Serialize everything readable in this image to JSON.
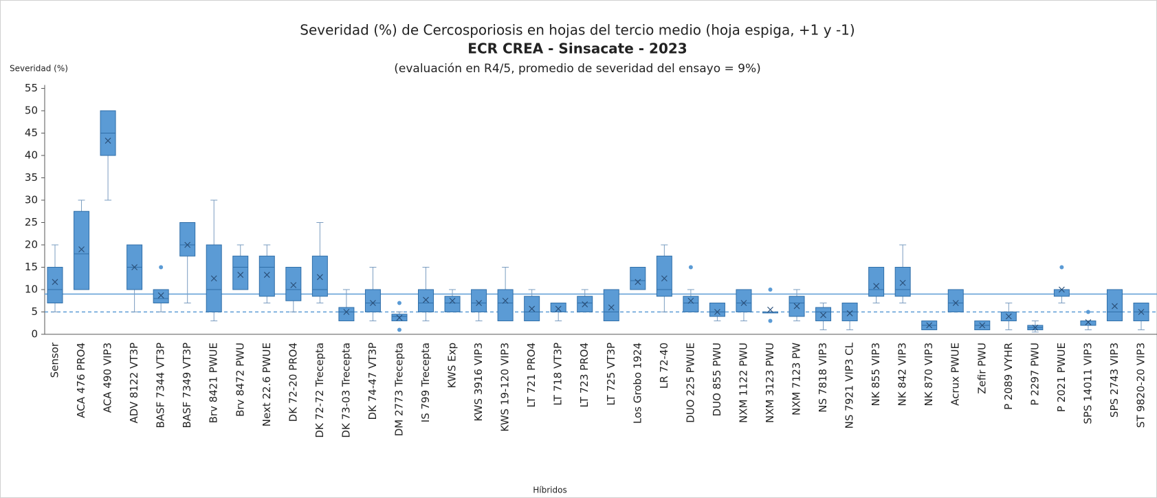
{
  "chart_data": {
    "type": "box",
    "title": "Severidad (%) de Cercosporiosis en hojas del tercio medio (hoja espiga, +1 y -1)",
    "subtitle": "ECR CREA - Sinsacate - 2023",
    "note": "(evaluación en R4/5, promedio de severidad del ensayo = 9%)",
    "y_label": "Severidad (%)",
    "x_label": "Híbridos",
    "color": "#5b9bd5",
    "ylim": [
      0,
      55
    ],
    "yticks": [
      0,
      5,
      10,
      15,
      20,
      25,
      30,
      35,
      40,
      45,
      50,
      55
    ],
    "reference_lines": [
      {
        "value": 9,
        "style": "solid"
      },
      {
        "value": 5,
        "style": "dashed"
      }
    ],
    "categories": [
      "Sensor",
      "ACA 476 PRO4",
      "ACA 490 VIP3",
      "ADV 8122 VT3P",
      "BASF 7344 VT3P",
      "BASF 7349 VT3P",
      "Brv 8421 PWUE",
      "Brv 8472 PWU",
      "Next 22.6 PWUE",
      "DK 72-20 PRO4",
      "DK 72-72 Trecepta",
      "DK 73-03 Trecepta",
      "DK 74-47 VT3P",
      "DM 2773 Trecepta",
      "IS 799 Trecepta",
      "KWS Exp",
      "KWS 3916 VIP3",
      "KWS 19-120 VIP3",
      "LT 721 PRO4",
      "LT 718 VT3P",
      "LT 723 PRO4",
      "LT 725 VT3P",
      "Los Grobo 1924",
      "LR 72-40",
      "DUO 225 PWUE",
      "DUO 855 PWU",
      "NXM 1122 PWU",
      "NXM 3123 PWU",
      "NXM 7123 PW",
      "NS 7818 VIP3",
      "NS 7921 VIP3 CL",
      "NK 855 VIP3",
      "NK 842 VIP3",
      "NK 870 VIP3",
      "Acrux PWUE",
      "Zefir PWU",
      "P 2089 VYHR",
      "P 2297 PWU",
      "P 2021 PWUE",
      "SPS 14011 VIP3",
      "SPS 2743 VIP3",
      "ST 9820-20 VIP3"
    ],
    "boxes": [
      {
        "min": 5,
        "q1": 7,
        "median": 10,
        "q3": 15,
        "max": 20,
        "mean": 11.7,
        "outliers": []
      },
      {
        "min": 10,
        "q1": 10,
        "median": 18,
        "q3": 27.5,
        "max": 30,
        "mean": 19,
        "outliers": []
      },
      {
        "min": 30,
        "q1": 40,
        "median": 45,
        "q3": 50,
        "max": 50,
        "mean": 43.3,
        "outliers": []
      },
      {
        "min": 5,
        "q1": 10,
        "median": 15,
        "q3": 20,
        "max": 20,
        "mean": 15,
        "outliers": []
      },
      {
        "min": 5,
        "q1": 7,
        "median": 8,
        "q3": 10,
        "max": 10,
        "mean": 8.7,
        "outliers": [
          15
        ]
      },
      {
        "min": 7,
        "q1": 17.5,
        "median": 20,
        "q3": 25,
        "max": 25,
        "mean": 20,
        "outliers": []
      },
      {
        "min": 3,
        "q1": 5,
        "median": 10,
        "q3": 20,
        "max": 30,
        "mean": 12.5,
        "outliers": []
      },
      {
        "min": 10,
        "q1": 10,
        "median": 15,
        "q3": 17.5,
        "max": 20,
        "mean": 13.3,
        "outliers": []
      },
      {
        "min": 7,
        "q1": 8.5,
        "median": 15,
        "q3": 17.5,
        "max": 20,
        "mean": 13.3,
        "outliers": []
      },
      {
        "min": 5,
        "q1": 7.5,
        "median": 10,
        "q3": 15,
        "max": 15,
        "mean": 11,
        "outliers": []
      },
      {
        "min": 7,
        "q1": 8.5,
        "median": 10,
        "q3": 17.5,
        "max": 25,
        "mean": 12.8,
        "outliers": []
      },
      {
        "min": 3,
        "q1": 3,
        "median": 5,
        "q3": 6,
        "max": 10,
        "mean": 5,
        "outliers": []
      },
      {
        "min": 3,
        "q1": 5,
        "median": 7,
        "q3": 10,
        "max": 15,
        "mean": 7,
        "outliers": []
      },
      {
        "min": 3,
        "q1": 3,
        "median": 4,
        "q3": 4.5,
        "max": 5,
        "mean": 3.7,
        "outliers": [
          1,
          7
        ]
      },
      {
        "min": 3,
        "q1": 5,
        "median": 7,
        "q3": 10,
        "max": 15,
        "mean": 7.7,
        "outliers": []
      },
      {
        "min": 5,
        "q1": 5,
        "median": 7,
        "q3": 8.5,
        "max": 10,
        "mean": 7.5,
        "outliers": []
      },
      {
        "min": 3,
        "q1": 5,
        "median": 7,
        "q3": 10,
        "max": 10,
        "mean": 7,
        "outliers": []
      },
      {
        "min": 3,
        "q1": 3,
        "median": 7,
        "q3": 10,
        "max": 15,
        "mean": 7.5,
        "outliers": []
      },
      {
        "min": 3,
        "q1": 3,
        "median": 5,
        "q3": 8.5,
        "max": 10,
        "mean": 5.7,
        "outliers": []
      },
      {
        "min": 3,
        "q1": 5,
        "median": 7,
        "q3": 7,
        "max": 7,
        "mean": 5.7,
        "outliers": []
      },
      {
        "min": 5,
        "q1": 5,
        "median": 7,
        "q3": 8.5,
        "max": 10,
        "mean": 6.7,
        "outliers": []
      },
      {
        "min": 3,
        "q1": 3,
        "median": 5,
        "q3": 10,
        "max": 10,
        "mean": 6,
        "outliers": []
      },
      {
        "min": 10,
        "q1": 10,
        "median": 12,
        "q3": 15,
        "max": 15,
        "mean": 11.7,
        "outliers": []
      },
      {
        "min": 5,
        "q1": 8.5,
        "median": 10,
        "q3": 17.5,
        "max": 20,
        "mean": 12.5,
        "outliers": []
      },
      {
        "min": 5,
        "q1": 5,
        "median": 7,
        "q3": 8.5,
        "max": 10,
        "mean": 7.5,
        "outliers": [
          15
        ]
      },
      {
        "min": 3,
        "q1": 4,
        "median": 5,
        "q3": 7,
        "max": 7,
        "mean": 5,
        "outliers": []
      },
      {
        "min": 3,
        "q1": 5,
        "median": 7,
        "q3": 10,
        "max": 10,
        "mean": 7,
        "outliers": []
      },
      {
        "min": 5,
        "q1": 5,
        "median": 5,
        "q3": 5,
        "max": 5,
        "mean": 5.5,
        "outliers": [
          3,
          10
        ]
      },
      {
        "min": 3,
        "q1": 4,
        "median": 7,
        "q3": 8.5,
        "max": 10,
        "mean": 6.3,
        "outliers": []
      },
      {
        "min": 1,
        "q1": 3,
        "median": 5,
        "q3": 6,
        "max": 7,
        "mean": 4.3,
        "outliers": []
      },
      {
        "min": 1,
        "q1": 3,
        "median": 5,
        "q3": 7,
        "max": 7,
        "mean": 4.7,
        "outliers": []
      },
      {
        "min": 7,
        "q1": 8.5,
        "median": 10,
        "q3": 15,
        "max": 15,
        "mean": 10.8,
        "outliers": []
      },
      {
        "min": 7,
        "q1": 8.5,
        "median": 10,
        "q3": 15,
        "max": 20,
        "mean": 11.5,
        "outliers": []
      },
      {
        "min": 1,
        "q1": 1,
        "median": 2,
        "q3": 3,
        "max": 3,
        "mean": 2,
        "outliers": []
      },
      {
        "min": 5,
        "q1": 5,
        "median": 7,
        "q3": 10,
        "max": 10,
        "mean": 7,
        "outliers": []
      },
      {
        "min": 1,
        "q1": 1,
        "median": 2,
        "q3": 3,
        "max": 3,
        "mean": 2,
        "outliers": []
      },
      {
        "min": 1,
        "q1": 3,
        "median": 5,
        "q3": 5,
        "max": 7,
        "mean": 4,
        "outliers": []
      },
      {
        "min": 0.5,
        "q1": 1,
        "median": 1.5,
        "q3": 2,
        "max": 3,
        "mean": 1.5,
        "outliers": []
      },
      {
        "min": 7,
        "q1": 8.5,
        "median": 10,
        "q3": 10,
        "max": 10,
        "mean": 10,
        "outliers": [
          15
        ]
      },
      {
        "min": 1,
        "q1": 2,
        "median": 3,
        "q3": 3,
        "max": 3,
        "mean": 2.7,
        "outliers": [
          5
        ]
      },
      {
        "min": 3,
        "q1": 3,
        "median": 5,
        "q3": 10,
        "max": 10,
        "mean": 6.3,
        "outliers": []
      },
      {
        "min": 1,
        "q1": 3,
        "median": 5,
        "q3": 7,
        "max": 7,
        "mean": 5,
        "outliers": []
      }
    ]
  }
}
